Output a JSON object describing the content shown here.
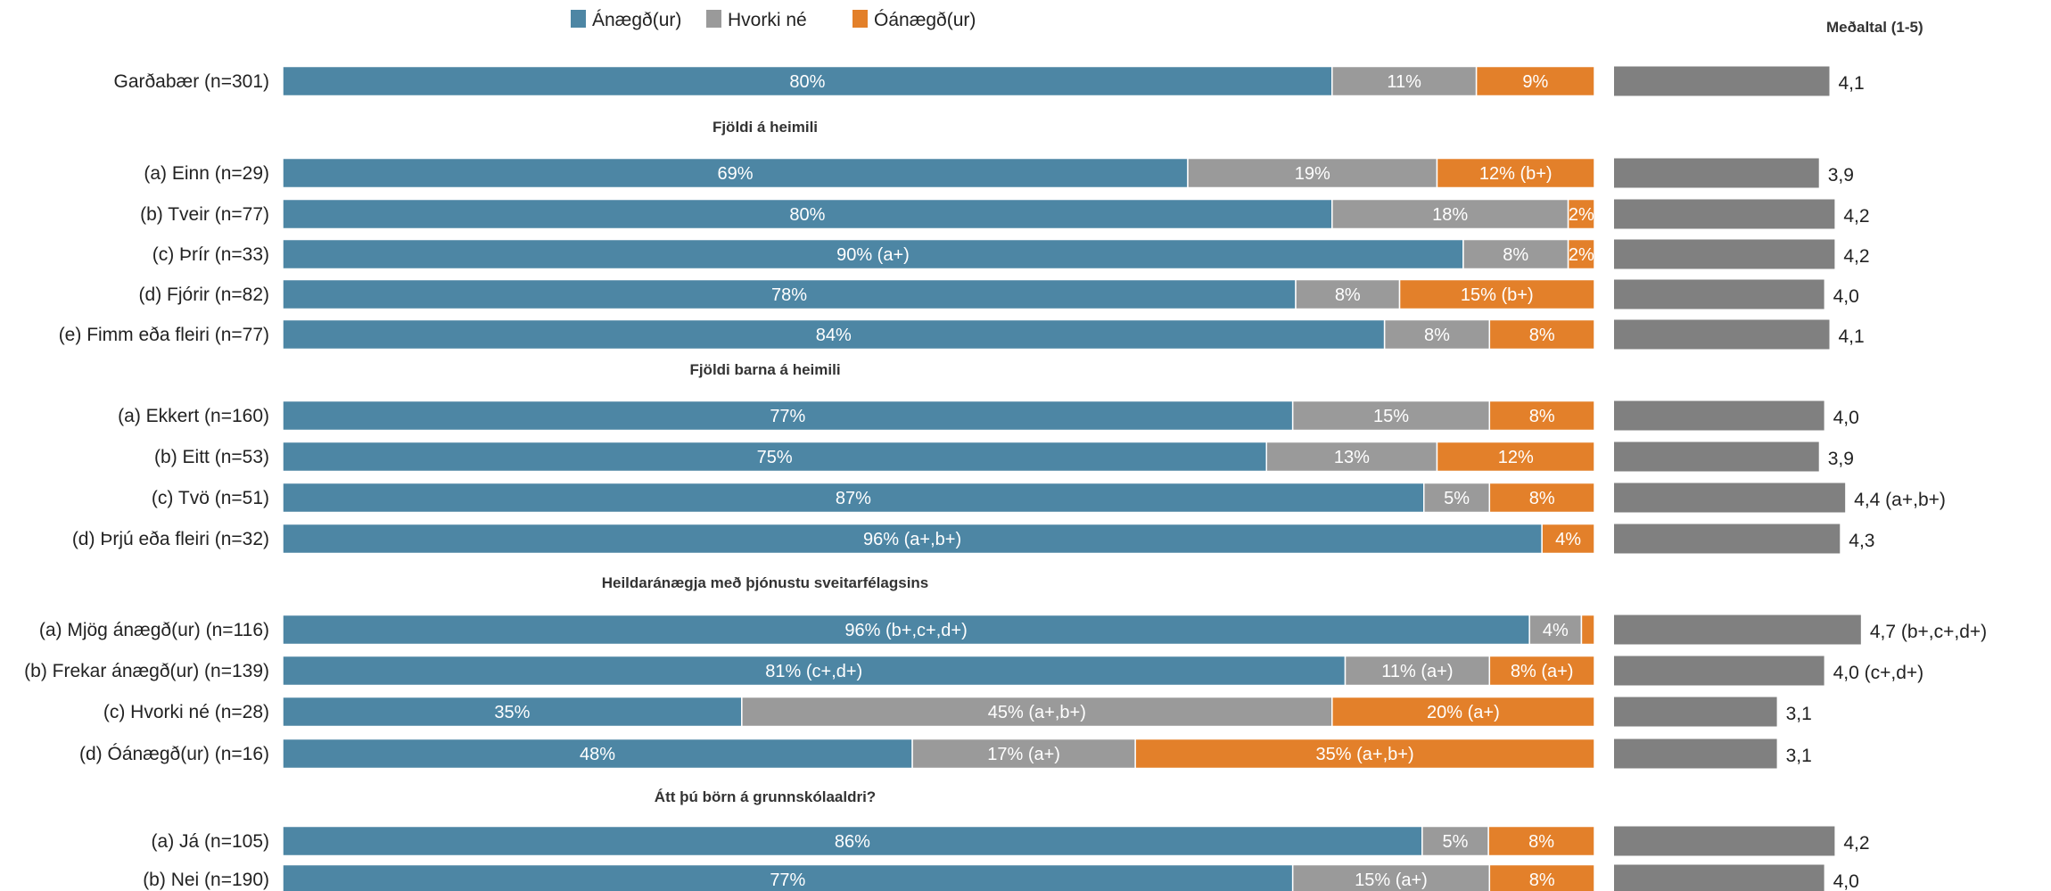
{
  "chart_data": {
    "type": "bar",
    "orientation": "horizontal",
    "stacked": true,
    "legend_position": "top",
    "grid": false,
    "series": [
      {
        "name": "Ánægð(ur)",
        "color": "#4d86a4"
      },
      {
        "name": "Hvorki né",
        "color": "#9a9a9a"
      },
      {
        "name": "Óánægð(ur)",
        "color": "#e3802a"
      }
    ],
    "mean_title": "Meðaltal (1-5)",
    "mean_color": "#808080",
    "mean_range": [
      0,
      5
    ],
    "rows": [
      {
        "label": "Garðabær (n=301)",
        "values": [
          80,
          11,
          9
        ],
        "texts": [
          "80%",
          "11%",
          "9%"
        ],
        "mean": 4.1,
        "mean_text": "4,1"
      },
      {
        "group_title": "Fjöldi á heimili"
      },
      {
        "label": "(a) Einn (n=29)",
        "values": [
          69,
          19,
          12
        ],
        "texts": [
          "69%",
          "19%",
          "12% (b+)"
        ],
        "mean": 3.9,
        "mean_text": "3,9"
      },
      {
        "label": "(b) Tveir (n=77)",
        "values": [
          80,
          18,
          2
        ],
        "texts": [
          "80%",
          "18%",
          "2%"
        ],
        "mean": 4.2,
        "mean_text": "4,2"
      },
      {
        "label": "(c) Þrír (n=33)",
        "values": [
          90,
          8,
          2
        ],
        "texts": [
          "90% (a+)",
          "8%",
          "2%"
        ],
        "mean": 4.2,
        "mean_text": "4,2"
      },
      {
        "label": "(d) Fjórir (n=82)",
        "values": [
          78,
          8,
          15
        ],
        "texts": [
          "78%",
          "8%",
          "15% (b+)"
        ],
        "mean": 4.0,
        "mean_text": "4,0"
      },
      {
        "label": "(e) Fimm eða fleiri (n=77)",
        "values": [
          84,
          8,
          8
        ],
        "texts": [
          "84%",
          "8%",
          "8%"
        ],
        "mean": 4.1,
        "mean_text": "4,1"
      },
      {
        "group_title": "Fjöldi barna á heimili"
      },
      {
        "label": "(a) Ekkert (n=160)",
        "values": [
          77,
          15,
          8
        ],
        "texts": [
          "77%",
          "15%",
          "8%"
        ],
        "mean": 4.0,
        "mean_text": "4,0"
      },
      {
        "label": "(b) Eitt (n=53)",
        "values": [
          75,
          13,
          12
        ],
        "texts": [
          "75%",
          "13%",
          "12%"
        ],
        "mean": 3.9,
        "mean_text": "3,9"
      },
      {
        "label": "(c) Tvö (n=51)",
        "values": [
          87,
          5,
          8
        ],
        "texts": [
          "87%",
          "5%",
          "8%"
        ],
        "mean": 4.4,
        "mean_text": "4,4 (a+,b+)"
      },
      {
        "label": "(d) Þrjú eða fleiri (n=32)",
        "values": [
          96,
          0,
          4
        ],
        "texts": [
          "96% (a+,b+)",
          "",
          "4%"
        ],
        "mean": 4.3,
        "mean_text": "4,3"
      },
      {
        "group_title": "Heildaránægja með þjónustu sveitarfélagsins"
      },
      {
        "label": "(a) Mjög ánægð(ur) (n=116)",
        "values": [
          96,
          4,
          1
        ],
        "texts": [
          "96% (b+,c+,d+)",
          "4%",
          ""
        ],
        "mean": 4.7,
        "mean_text": "4,7 (b+,c+,d+)"
      },
      {
        "label": "(b) Frekar ánægð(ur) (n=139)",
        "values": [
          81,
          11,
          8
        ],
        "texts": [
          "81% (c+,d+)",
          "11% (a+)",
          "8% (a+)"
        ],
        "mean": 4.0,
        "mean_text": "4,0 (c+,d+)"
      },
      {
        "label": "(c) Hvorki né (n=28)",
        "values": [
          35,
          45,
          20
        ],
        "texts": [
          "35%",
          "45% (a+,b+)",
          "20% (a+)"
        ],
        "mean": 3.1,
        "mean_text": "3,1"
      },
      {
        "label": "(d) Óánægð(ur) (n=16)",
        "values": [
          48,
          17,
          35
        ],
        "texts": [
          "48%",
          "17% (a+)",
          "35% (a+,b+)"
        ],
        "mean": 3.1,
        "mean_text": "3,1"
      },
      {
        "group_title": "Átt þú börn á grunnskólaaldri?"
      },
      {
        "label": "(a) Já (n=105)",
        "values": [
          86,
          5,
          8
        ],
        "texts": [
          "86%",
          "5%",
          "8%"
        ],
        "mean": 4.2,
        "mean_text": "4,2"
      },
      {
        "label": "(b) Nei (n=190)",
        "values": [
          77,
          15,
          8
        ],
        "texts": [
          "77%",
          "15% (a+)",
          "8%"
        ],
        "mean": 4.0,
        "mean_text": "4,0"
      }
    ]
  }
}
